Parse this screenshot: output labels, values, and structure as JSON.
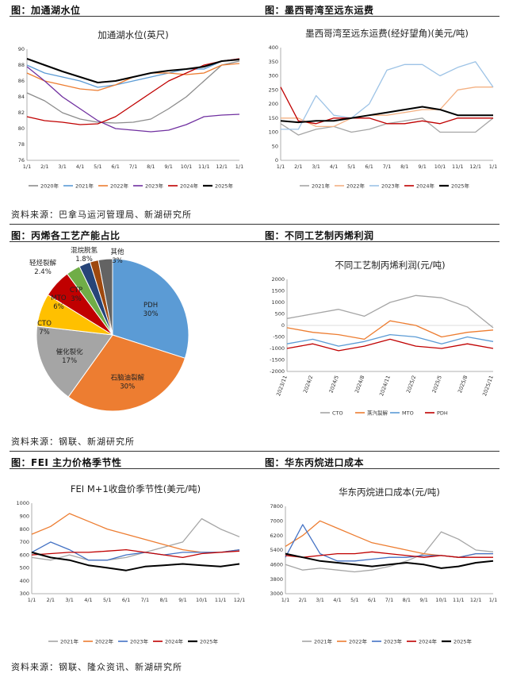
{
  "sections": {
    "t1": "图：加通湖水位",
    "t2": "图：墨西哥湾至远东运费",
    "t3": "图：丙烯各工艺产能占比",
    "t4": "图：不同工艺制丙烯利润",
    "t5": "图：FEI 主力价格季节性",
    "t6": "图：华东丙烷进口成本"
  },
  "sources": {
    "s1": "资料来源：巴拿马运河管理局、新湖研究所",
    "s2": "资料来源：钢联、新湖研究所",
    "s3": "资料来源：钢联、隆众资讯、新湖研究所"
  },
  "chart_data": [
    {
      "type": "line",
      "id": "gatun",
      "title": "加通湖水位(英尺)",
      "ylim": [
        76,
        90
      ],
      "yticks": [
        "90",
        "88",
        "86",
        "84",
        "82",
        "80",
        "78",
        "76"
      ],
      "xticks": [
        "1/1",
        "2/1",
        "3/1",
        "4/1",
        "5/1",
        "6/1",
        "7/1",
        "8/1",
        "9/1",
        "10/1",
        "11/1",
        "12/1",
        "1/1"
      ],
      "series": [
        {
          "name": "2020年",
          "color": "#8c8c8c",
          "values": [
            84.5,
            83.5,
            82,
            81.2,
            80.8,
            80.7,
            80.8,
            81.2,
            82.5,
            84,
            86,
            88,
            88.5
          ]
        },
        {
          "name": "2021年",
          "color": "#5b9bd5",
          "values": [
            88,
            87,
            86.5,
            86,
            85.2,
            85.5,
            86,
            86.5,
            87,
            87.5,
            87.5,
            88.5,
            88.8
          ]
        },
        {
          "name": "2022年",
          "color": "#ed7d31",
          "values": [
            87,
            86,
            85.5,
            85,
            84.8,
            85.5,
            86.5,
            87,
            87,
            86.8,
            87,
            88,
            88.2
          ]
        },
        {
          "name": "2023年",
          "color": "#7030a0",
          "values": [
            87.8,
            86,
            84,
            82.5,
            81,
            80,
            79.8,
            79.6,
            79.8,
            80.5,
            81.5,
            81.7,
            81.8
          ]
        },
        {
          "name": "2024年",
          "color": "#c00000",
          "values": [
            81.5,
            81,
            80.8,
            80.5,
            80.6,
            81.5,
            83,
            84.5,
            86,
            87,
            88,
            88.5,
            88.8
          ]
        },
        {
          "name": "2025年",
          "color": "#000000",
          "values": [
            88.8,
            88,
            87.2,
            86.5,
            85.8,
            86,
            86.5,
            87,
            87.3,
            87.5,
            87.8,
            88.5,
            88.7
          ]
        }
      ]
    },
    {
      "type": "line",
      "id": "freight",
      "title": "墨西哥湾至远东运费(经好望角)(美元/吨)",
      "ylim": [
        0,
        400
      ],
      "yticks": [
        "400",
        "350",
        "300",
        "250",
        "200",
        "150",
        "100",
        "50",
        "0"
      ],
      "xticks": [
        "1/1",
        "2/1",
        "3/1",
        "4/1",
        "5/1",
        "6/1",
        "7/1",
        "8/1",
        "9/1",
        "10/1",
        "11/1",
        "12/1",
        "1/1"
      ],
      "series": [
        {
          "name": "2021年",
          "color": "#a5a5a5",
          "values": [
            130,
            90,
            110,
            120,
            100,
            110,
            130,
            140,
            150,
            100,
            100,
            100,
            150
          ]
        },
        {
          "name": "2022年",
          "color": "#f4b183",
          "values": [
            150,
            150,
            120,
            120,
            150,
            160,
            160,
            170,
            180,
            180,
            250,
            260,
            260
          ]
        },
        {
          "name": "2023年",
          "color": "#9dc3e6",
          "values": [
            110,
            110,
            230,
            160,
            150,
            200,
            320,
            340,
            340,
            300,
            330,
            350,
            260
          ]
        },
        {
          "name": "2024年",
          "color": "#c00000",
          "values": [
            260,
            140,
            130,
            150,
            150,
            150,
            130,
            130,
            140,
            130,
            150,
            150,
            150
          ]
        },
        {
          "name": "2025年",
          "color": "#000000",
          "values": [
            140,
            135,
            140,
            140,
            150,
            160,
            170,
            180,
            190,
            180,
            160,
            160,
            160
          ]
        }
      ]
    },
    {
      "type": "pie",
      "id": "capacity",
      "categories": [
        "PDH",
        "石脑油裂解",
        "催化裂化",
        "CTO",
        "MTO",
        "CTP",
        "轻烃裂解",
        "混烷脱氢",
        "其他"
      ],
      "values": [
        30,
        30,
        17,
        7,
        6,
        3,
        2.4,
        1.8,
        3
      ],
      "labels": [
        "30%",
        "30%",
        "17%",
        "7%",
        "6%",
        "3%",
        "2.4%",
        "1.8%",
        "3%"
      ],
      "colors": [
        "#5b9bd5",
        "#ed7d31",
        "#a5a5a5",
        "#ffc000",
        "#c00000",
        "#70ad47",
        "#264478",
        "#9e480e",
        "#636363"
      ]
    },
    {
      "type": "line",
      "id": "profit",
      "title": "不同工艺制丙烯利润(元/吨)",
      "ylim": [
        -2000,
        2000
      ],
      "yticks": [
        "2000",
        "1500",
        "1000",
        "500",
        "0",
        "-500",
        "-1000",
        "-1500",
        "-2000"
      ],
      "xticks": [
        "2023/11",
        "2024/2",
        "2024/5",
        "2024/8",
        "2024/11",
        "2025/2",
        "2025/5",
        "2025/8",
        "2025/11"
      ],
      "series": [
        {
          "name": "CTO",
          "color": "#a5a5a5",
          "values": [
            300,
            500,
            700,
            400,
            1000,
            1300,
            1200,
            800,
            -100
          ]
        },
        {
          "name": "蒸汽裂解",
          "color": "#ed7d31",
          "values": [
            -100,
            -300,
            -400,
            -600,
            200,
            0,
            -500,
            -300,
            -200
          ]
        },
        {
          "name": "MTO",
          "color": "#5b9bd5",
          "values": [
            -800,
            -600,
            -900,
            -700,
            -400,
            -500,
            -800,
            -500,
            -700
          ]
        },
        {
          "name": "PDH",
          "color": "#c00000",
          "values": [
            -1000,
            -800,
            -1100,
            -900,
            -600,
            -900,
            -1000,
            -800,
            -1000
          ]
        }
      ]
    },
    {
      "type": "line",
      "id": "fei",
      "title": "FEI M+1收盘价季节性(美元/吨)",
      "ylim": [
        300,
        1000
      ],
      "yticks": [
        "1000",
        "900",
        "800",
        "700",
        "600",
        "500",
        "400",
        "300"
      ],
      "xticks": [
        "1/1",
        "2/1",
        "3/1",
        "4/1",
        "5/1",
        "6/1",
        "7/1",
        "8/1",
        "9/1",
        "10/1",
        "11/1",
        "12/1"
      ],
      "series": [
        {
          "name": "2021年",
          "color": "#a5a5a5",
          "values": [
            580,
            560,
            600,
            560,
            560,
            580,
            620,
            660,
            700,
            880,
            800,
            740
          ]
        },
        {
          "name": "2022年",
          "color": "#ed7d31",
          "values": [
            760,
            820,
            920,
            860,
            800,
            760,
            720,
            680,
            640,
            620,
            620,
            640
          ]
        },
        {
          "name": "2023年",
          "color": "#4472c4",
          "values": [
            620,
            700,
            640,
            560,
            560,
            600,
            620,
            600,
            620,
            620,
            620,
            640
          ]
        },
        {
          "name": "2024年",
          "color": "#c00000",
          "values": [
            600,
            610,
            620,
            620,
            630,
            640,
            620,
            600,
            580,
            610,
            620,
            630
          ]
        },
        {
          "name": "2025年",
          "color": "#000000",
          "values": [
            620,
            580,
            560,
            520,
            500,
            480,
            510,
            520,
            530,
            520,
            510,
            530
          ]
        }
      ]
    },
    {
      "type": "line",
      "id": "import-cost",
      "title": "华东丙烷进口成本(元/吨)",
      "ylim": [
        3000,
        7800
      ],
      "yticks": [
        "7800",
        "7000",
        "6200",
        "5400",
        "4600",
        "3800",
        "3000"
      ],
      "xticks": [
        "1/1",
        "2/1",
        "3/1",
        "4/1",
        "5/1",
        "6/1",
        "7/1",
        "8/1",
        "9/1",
        "10/1",
        "11/1",
        "12/1",
        "1/1"
      ],
      "series": [
        {
          "name": "2021年",
          "color": "#a5a5a5",
          "values": [
            4600,
            4300,
            4400,
            4300,
            4200,
            4300,
            4500,
            4800,
            5200,
            6400,
            6000,
            5400,
            5300
          ]
        },
        {
          "name": "2022年",
          "color": "#ed7d31",
          "values": [
            5600,
            6200,
            7000,
            6600,
            6200,
            5800,
            5600,
            5400,
            5200,
            5100,
            5000,
            5200,
            5200
          ]
        },
        {
          "name": "2023年",
          "color": "#4472c4",
          "values": [
            5000,
            6800,
            5200,
            4800,
            4800,
            4900,
            5000,
            5000,
            5100,
            5100,
            5000,
            5200,
            5200
          ]
        },
        {
          "name": "2024年",
          "color": "#c00000",
          "values": [
            5100,
            5000,
            5100,
            5200,
            5200,
            5300,
            5200,
            5100,
            5000,
            5100,
            5000,
            5000,
            5000
          ]
        },
        {
          "name": "2025年",
          "color": "#000000",
          "values": [
            5200,
            5000,
            4800,
            4700,
            4600,
            4500,
            4600,
            4700,
            4600,
            4400,
            4500,
            4700,
            4800
          ]
        }
      ]
    }
  ]
}
